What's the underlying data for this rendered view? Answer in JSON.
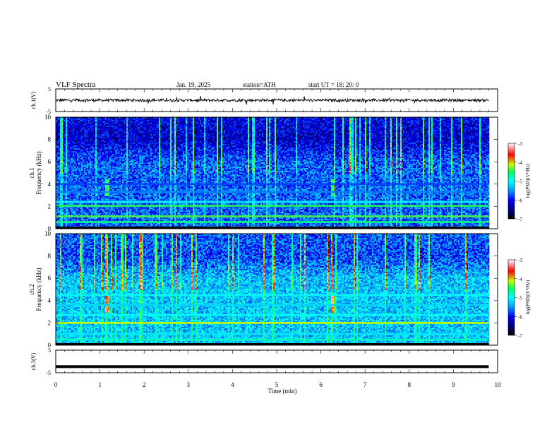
{
  "header": {
    "title": "VLF  Spectra",
    "date": "Jan. 19, 2025",
    "station": "station=ATH",
    "start_time": "start  UT  =   18: 20: 0"
  },
  "chart_data": [
    {
      "type": "line",
      "id": "ch1",
      "ylabel": "ch.1(V)",
      "yticks": [
        "5",
        "-5"
      ],
      "ylim": [
        -5,
        5
      ],
      "xlim": [
        0,
        10
      ],
      "series": [
        {
          "baseline": 0,
          "amplitude": "noisy ~ ±0.6 V with spikes to ±2 V",
          "end": 9.8
        }
      ]
    },
    {
      "type": "heatmap",
      "id": "ch1-spectrogram",
      "ylabel": "Frequency (kHz)",
      "channel_label": "ch.1",
      "yticks": [
        "0",
        "2",
        "4",
        "6",
        "8",
        "10"
      ],
      "ylim": [
        0,
        10
      ],
      "xlim": [
        0,
        9.8
      ],
      "colorbar": {
        "label": "log(PSD)(V²/Hz)",
        "ticks": [
          "-3",
          "-4",
          "-5",
          "-6",
          "-7"
        ],
        "range": [
          -7,
          -3
        ]
      },
      "colors": [
        "#000000",
        "#00007f",
        "#0000ff",
        "#00a0ff",
        "#00ffff",
        "#00ff60",
        "#c8ff00",
        "#ff0000",
        "#ffffff"
      ],
      "bands_khz": [
        {
          "f": 2.05,
          "level": -4.4
        },
        {
          "f": 2.4,
          "level": -5.0
        },
        {
          "f": 1.1,
          "level": -4.3
        },
        {
          "f": 0.6,
          "level": -4.6
        },
        {
          "f": 3.3,
          "level": -5.6
        },
        {
          "f": 4.0,
          "level": -5.8
        }
      ]
    },
    {
      "type": "heatmap",
      "id": "ch2-spectrogram",
      "ylabel": "Frequency (kHz)",
      "channel_label": "ch.2",
      "yticks": [
        "0",
        "2",
        "4",
        "6",
        "8",
        "10"
      ],
      "ylim": [
        0,
        10
      ],
      "xlim": [
        0,
        9.8
      ],
      "colorbar": {
        "label": "log(PSD)(V²/Hz)",
        "ticks": [
          "-3",
          "-4",
          "-5",
          "-6",
          "-7"
        ],
        "range": [
          -7,
          -3
        ]
      },
      "bands_khz": [
        {
          "f": 2.0,
          "level": -4.0
        },
        {
          "f": 2.7,
          "level": -5.0
        },
        {
          "f": 3.6,
          "level": -5.2
        },
        {
          "f": 4.5,
          "level": -5.0
        },
        {
          "f": 1.0,
          "level": -5.1
        },
        {
          "f": 0.5,
          "level": -4.8
        }
      ]
    },
    {
      "type": "line",
      "id": "ch3",
      "ylabel": "ch.3(V)",
      "yticks": [
        "5",
        "-5"
      ],
      "ylim": [
        -5,
        5
      ],
      "xlim": [
        0,
        10
      ],
      "series": [
        {
          "baseline": -2.3,
          "end": 9.8
        }
      ]
    }
  ],
  "xaxis": {
    "label": "Time (min)",
    "ticks": [
      "0",
      "1",
      "2",
      "3",
      "4",
      "5",
      "6",
      "7",
      "8",
      "9",
      "10"
    ],
    "range": [
      0,
      10
    ]
  }
}
